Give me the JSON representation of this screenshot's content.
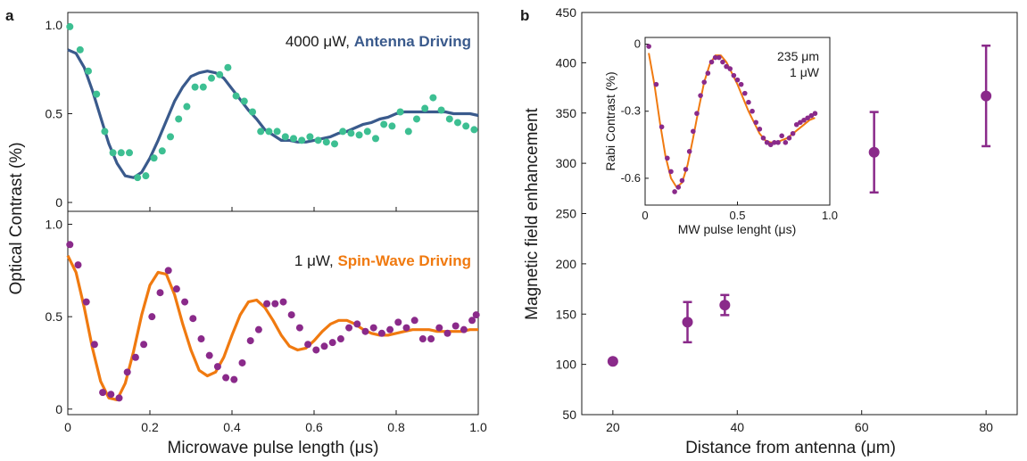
{
  "colors": {
    "antenna_points": "#3dbf92",
    "antenna_fit": "#3a5a8c",
    "spinwave_points": "#8a2a8a",
    "spinwave_fit": "#f07a10",
    "enhancement": "#8a2a8a",
    "axes": "#1a1a1a"
  },
  "chart_data": [
    {
      "panel": "a",
      "type": "scatter",
      "subplot": "top",
      "x_ticks": [
        "0",
        "0.2",
        "0.4",
        "0.6",
        "0.8",
        "1.0"
      ],
      "y_ticks": [
        "0",
        "0.5",
        "1.0"
      ],
      "xlim": [
        0,
        1.0
      ],
      "ylim": [
        -0.05,
        1.07
      ],
      "ylabel": "Optical Contrast (%)",
      "annotation_plain": "4000 μW, ",
      "annotation_bold": "Antenna Driving",
      "series": [
        {
          "role": "data",
          "x": [
            0.005,
            0.03,
            0.05,
            0.07,
            0.09,
            0.11,
            0.13,
            0.15,
            0.17,
            0.19,
            0.21,
            0.23,
            0.25,
            0.27,
            0.29,
            0.31,
            0.33,
            0.35,
            0.37,
            0.39,
            0.41,
            0.43,
            0.45,
            0.47,
            0.49,
            0.51,
            0.53,
            0.55,
            0.57,
            0.59,
            0.61,
            0.63,
            0.65,
            0.67,
            0.69,
            0.71,
            0.73,
            0.75,
            0.77,
            0.79,
            0.81,
            0.83,
            0.85,
            0.87,
            0.89,
            0.91,
            0.93,
            0.95,
            0.97,
            0.99
          ],
          "y": [
            0.99,
            0.86,
            0.74,
            0.61,
            0.4,
            0.28,
            0.28,
            0.28,
            0.14,
            0.15,
            0.25,
            0.29,
            0.37,
            0.47,
            0.54,
            0.65,
            0.65,
            0.7,
            0.72,
            0.76,
            0.6,
            0.57,
            0.51,
            0.4,
            0.4,
            0.4,
            0.37,
            0.36,
            0.35,
            0.37,
            0.35,
            0.34,
            0.33,
            0.4,
            0.39,
            0.38,
            0.4,
            0.36,
            0.44,
            0.43,
            0.51,
            0.4,
            0.47,
            0.53,
            0.59,
            0.52,
            0.47,
            0.45,
            0.43,
            0.41
          ]
        },
        {
          "role": "fit",
          "x": [
            0.0,
            0.02,
            0.04,
            0.06,
            0.08,
            0.1,
            0.12,
            0.14,
            0.16,
            0.18,
            0.2,
            0.22,
            0.24,
            0.26,
            0.28,
            0.3,
            0.32,
            0.34,
            0.36,
            0.38,
            0.4,
            0.42,
            0.44,
            0.46,
            0.48,
            0.5,
            0.52,
            0.54,
            0.56,
            0.58,
            0.6,
            0.62,
            0.64,
            0.66,
            0.68,
            0.7,
            0.72,
            0.74,
            0.76,
            0.78,
            0.8,
            0.82,
            0.84,
            0.86,
            0.88,
            0.9,
            0.92,
            0.94,
            0.96,
            0.98,
            1.0
          ],
          "y": [
            0.86,
            0.84,
            0.76,
            0.63,
            0.48,
            0.33,
            0.22,
            0.15,
            0.14,
            0.17,
            0.25,
            0.35,
            0.46,
            0.57,
            0.65,
            0.71,
            0.73,
            0.74,
            0.73,
            0.7,
            0.64,
            0.58,
            0.52,
            0.47,
            0.41,
            0.38,
            0.35,
            0.35,
            0.34,
            0.34,
            0.35,
            0.36,
            0.37,
            0.39,
            0.4,
            0.42,
            0.44,
            0.45,
            0.47,
            0.48,
            0.5,
            0.51,
            0.51,
            0.51,
            0.51,
            0.51,
            0.51,
            0.5,
            0.5,
            0.5,
            0.49
          ]
        }
      ]
    },
    {
      "panel": "a",
      "type": "scatter",
      "subplot": "bottom",
      "x_ticks": [
        "0",
        "0.2",
        "0.4",
        "0.6",
        "0.8",
        "1.0"
      ],
      "y_ticks": [
        "0",
        "0.5",
        "1.0"
      ],
      "xlim": [
        0,
        1.0
      ],
      "ylim": [
        -0.03,
        1.07
      ],
      "xlabel": "Microwave pulse length (μs)",
      "annotation_plain": "1 μW, ",
      "annotation_bold": "Spin-Wave Driving",
      "series": [
        {
          "role": "data",
          "x": [
            0.005,
            0.025,
            0.045,
            0.065,
            0.085,
            0.105,
            0.125,
            0.145,
            0.165,
            0.185,
            0.205,
            0.225,
            0.245,
            0.265,
            0.285,
            0.305,
            0.325,
            0.345,
            0.365,
            0.385,
            0.405,
            0.425,
            0.445,
            0.465,
            0.485,
            0.505,
            0.525,
            0.545,
            0.565,
            0.585,
            0.605,
            0.625,
            0.645,
            0.665,
            0.685,
            0.705,
            0.725,
            0.745,
            0.765,
            0.785,
            0.805,
            0.825,
            0.845,
            0.865,
            0.885,
            0.905,
            0.925,
            0.945,
            0.965,
            0.985,
            0.995
          ],
          "y": [
            0.89,
            0.78,
            0.58,
            0.35,
            0.09,
            0.08,
            0.06,
            0.2,
            0.28,
            0.35,
            0.5,
            0.63,
            0.75,
            0.65,
            0.58,
            0.49,
            0.38,
            0.29,
            0.23,
            0.17,
            0.16,
            0.25,
            0.37,
            0.43,
            0.57,
            0.57,
            0.58,
            0.51,
            0.44,
            0.35,
            0.32,
            0.34,
            0.36,
            0.38,
            0.44,
            0.46,
            0.42,
            0.44,
            0.41,
            0.43,
            0.47,
            0.44,
            0.48,
            0.38,
            0.38,
            0.44,
            0.41,
            0.45,
            0.43,
            0.48,
            0.51
          ]
        },
        {
          "role": "fit",
          "x": [
            0.0,
            0.02,
            0.04,
            0.06,
            0.08,
            0.1,
            0.12,
            0.14,
            0.16,
            0.18,
            0.2,
            0.22,
            0.24,
            0.26,
            0.28,
            0.3,
            0.32,
            0.34,
            0.36,
            0.38,
            0.4,
            0.42,
            0.44,
            0.46,
            0.48,
            0.5,
            0.52,
            0.54,
            0.56,
            0.58,
            0.6,
            0.62,
            0.64,
            0.66,
            0.68,
            0.7,
            0.72,
            0.74,
            0.76,
            0.78,
            0.8,
            0.82,
            0.84,
            0.86,
            0.88,
            0.9,
            0.92,
            0.94,
            0.96,
            0.98,
            1.0
          ],
          "y": [
            0.83,
            0.74,
            0.55,
            0.33,
            0.15,
            0.06,
            0.05,
            0.14,
            0.31,
            0.51,
            0.67,
            0.74,
            0.73,
            0.62,
            0.46,
            0.32,
            0.21,
            0.18,
            0.2,
            0.28,
            0.4,
            0.51,
            0.58,
            0.59,
            0.55,
            0.48,
            0.4,
            0.34,
            0.32,
            0.33,
            0.37,
            0.42,
            0.46,
            0.48,
            0.48,
            0.46,
            0.43,
            0.41,
            0.4,
            0.4,
            0.41,
            0.42,
            0.43,
            0.43,
            0.43,
            0.42,
            0.42,
            0.42,
            0.42,
            0.43,
            0.43
          ]
        }
      ]
    },
    {
      "panel": "b",
      "type": "scatter",
      "x_ticks": [
        "20",
        "40",
        "60",
        "80"
      ],
      "y_ticks": [
        "50",
        "100",
        "150",
        "200",
        "250",
        "300",
        "350",
        "400",
        "450"
      ],
      "xlim": [
        15,
        85
      ],
      "ylim": [
        50,
        450
      ],
      "xlabel": "Distance from antenna (μm)",
      "ylabel": "Magnetic field enhancement",
      "x": [
        20,
        32,
        38,
        62,
        80
      ],
      "y": [
        103,
        142,
        159,
        311,
        367
      ],
      "error": [
        0,
        20,
        10,
        40,
        50
      ]
    },
    {
      "panel": "b-inset",
      "type": "scatter",
      "x_ticks": [
        "0",
        "0.5",
        "1.0"
      ],
      "y_ticks": [
        "0",
        "-0.3",
        "-0.6"
      ],
      "xlim": [
        0,
        1.0
      ],
      "ylim": [
        -0.72,
        0.03
      ],
      "xlabel": "MW pulse lenght (μs)",
      "ylabel": "Rabi Contrast (%)",
      "annotation_lines": [
        "235 μm",
        "1 μW"
      ],
      "series": [
        {
          "role": "data",
          "x": [
            0.02,
            0.06,
            0.09,
            0.12,
            0.14,
            0.16,
            0.18,
            0.2,
            0.22,
            0.24,
            0.26,
            0.28,
            0.3,
            0.32,
            0.34,
            0.36,
            0.38,
            0.4,
            0.42,
            0.44,
            0.46,
            0.48,
            0.5,
            0.52,
            0.54,
            0.56,
            0.58,
            0.6,
            0.62,
            0.64,
            0.66,
            0.68,
            0.7,
            0.72,
            0.74,
            0.76,
            0.78,
            0.8,
            0.82,
            0.84,
            0.86,
            0.88,
            0.9,
            0.92
          ],
          "y": [
            -0.01,
            -0.18,
            -0.37,
            -0.51,
            -0.57,
            -0.66,
            -0.64,
            -0.61,
            -0.56,
            -0.48,
            -0.39,
            -0.31,
            -0.23,
            -0.17,
            -0.13,
            -0.08,
            -0.06,
            -0.06,
            -0.08,
            -0.1,
            -0.11,
            -0.14,
            -0.16,
            -0.18,
            -0.22,
            -0.26,
            -0.3,
            -0.35,
            -0.38,
            -0.42,
            -0.44,
            -0.45,
            -0.44,
            -0.44,
            -0.41,
            -0.44,
            -0.42,
            -0.4,
            -0.36,
            -0.35,
            -0.34,
            -0.33,
            -0.32,
            -0.31
          ]
        },
        {
          "role": "fit",
          "x": [
            0.02,
            0.05,
            0.08,
            0.11,
            0.14,
            0.17,
            0.2,
            0.23,
            0.26,
            0.29,
            0.32,
            0.35,
            0.38,
            0.41,
            0.44,
            0.47,
            0.5,
            0.53,
            0.56,
            0.59,
            0.62,
            0.65,
            0.68,
            0.71,
            0.74,
            0.77,
            0.8,
            0.83,
            0.86,
            0.89,
            0.92
          ],
          "y": [
            -0.04,
            -0.18,
            -0.35,
            -0.5,
            -0.6,
            -0.64,
            -0.62,
            -0.54,
            -0.42,
            -0.29,
            -0.17,
            -0.09,
            -0.05,
            -0.05,
            -0.08,
            -0.13,
            -0.18,
            -0.24,
            -0.3,
            -0.35,
            -0.4,
            -0.43,
            -0.44,
            -0.44,
            -0.43,
            -0.42,
            -0.4,
            -0.38,
            -0.36,
            -0.34,
            -0.33
          ]
        }
      ]
    }
  ],
  "panel_labels": {
    "a": "a",
    "b": "b"
  }
}
